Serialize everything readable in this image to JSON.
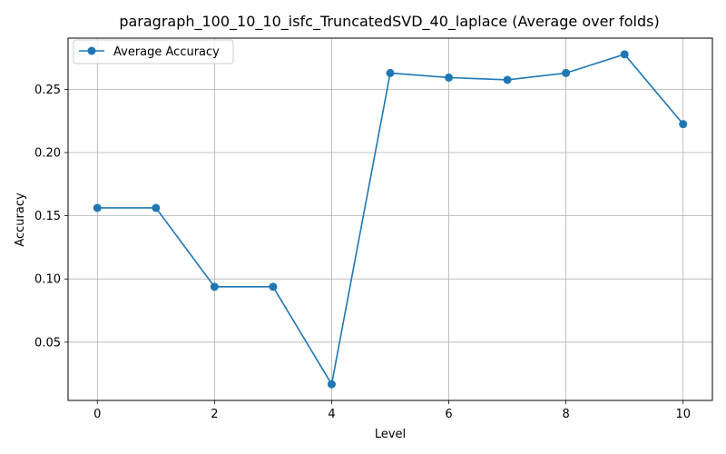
{
  "chart_data": {
    "type": "line",
    "title": "paragraph_100_10_10_isfc_TruncatedSVD_40_laplace (Average over folds)",
    "xlabel": "Level",
    "ylabel": "Accuracy",
    "x": [
      0,
      1,
      2,
      3,
      4,
      5,
      6,
      7,
      8,
      9,
      10
    ],
    "series": [
      {
        "name": "Average Accuracy",
        "values": [
          0.1562,
          0.1562,
          0.0938,
          0.0938,
          0.0167,
          0.2629,
          0.2593,
          0.2575,
          0.2629,
          0.2777,
          0.2225
        ],
        "color": "#1f77b4",
        "marker": "circle"
      }
    ],
    "xlim": [
      -0.5,
      10.5
    ],
    "ylim": [
      0.0039,
      0.2905
    ],
    "xticks": [
      0,
      2,
      4,
      6,
      8,
      10
    ],
    "xtick_labels": [
      "0",
      "2",
      "4",
      "6",
      "8",
      "10"
    ],
    "yticks": [
      0.05,
      0.1,
      0.15,
      0.2,
      0.25
    ],
    "ytick_labels": [
      "0.05",
      "0.10",
      "0.15",
      "0.20",
      "0.25"
    ],
    "grid": true,
    "legend_position": "top-left"
  }
}
